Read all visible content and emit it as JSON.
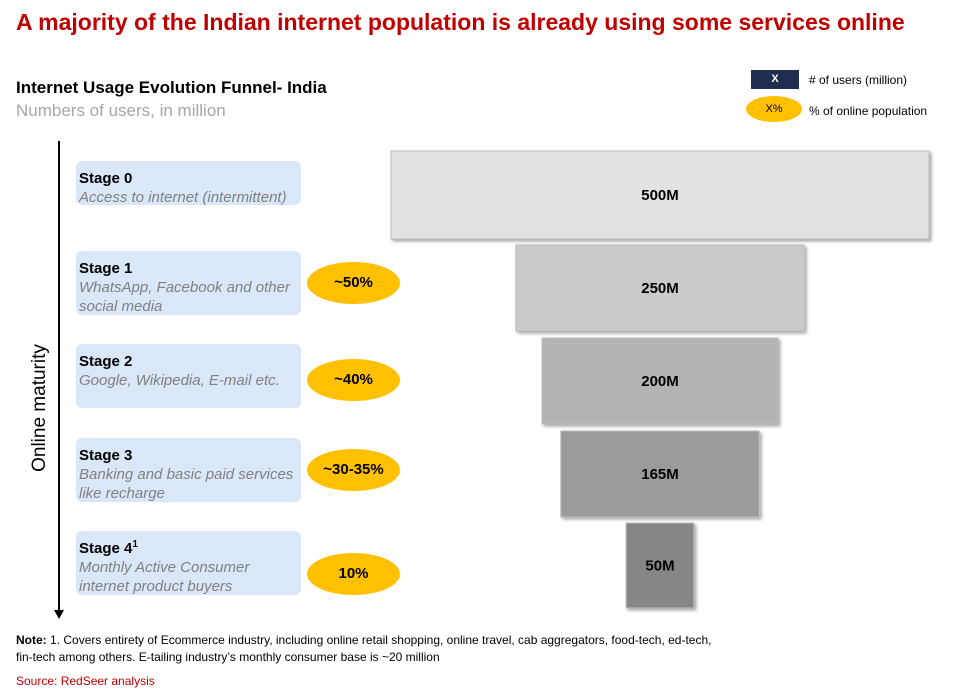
{
  "headline": "A majority of the Indian internet population is already using some services online",
  "legend": {
    "users_marker": "X",
    "users_label": "# of users (million)",
    "pct_marker": "X%",
    "pct_label": "% of online population"
  },
  "axis_label": "Online maturity",
  "stages": [
    {
      "name": "Stage 0",
      "sup": "",
      "desc": "Access to internet (intermittent)",
      "pct": ""
    },
    {
      "name": "Stage 1",
      "sup": "",
      "desc": "WhatsApp, Facebook and other social media",
      "pct": "~50%"
    },
    {
      "name": "Stage 2",
      "sup": "",
      "desc": "Google, Wikipedia, E-mail etc.",
      "pct": "~40%"
    },
    {
      "name": "Stage 3",
      "sup": "",
      "desc": "Banking and basic paid services like recharge",
      "pct": "~30-35%"
    },
    {
      "name": "Stage 4",
      "sup": "1",
      "desc": "Monthly Active Consumer internet product buyers",
      "pct": "10%"
    }
  ],
  "note": {
    "prefix": "Note:",
    "text": "1. Covers entirety of Ecommerce industry, including online retail shopping, online travel, cab aggregators, food-tech, ed-tech, fin-tech among others. E-tailing industry’s monthly consumer base is ~20 million"
  },
  "source": "Source: RedSeer analysis",
  "chart_data": {
    "type": "bar",
    "orientation": "horizontal-funnel",
    "title": "Internet Usage Evolution Funnel- India",
    "subtitle": "Numbers of users, in million",
    "categories": [
      "Stage 0",
      "Stage 1",
      "Stage 2",
      "Stage 3",
      "Stage 4"
    ],
    "values": [
      500,
      250,
      200,
      165,
      50
    ],
    "data_labels": [
      "500M",
      "250M",
      "200M",
      "165M",
      "50M"
    ],
    "colors": [
      "#e2e2e2",
      "#cacaca",
      "#b3b3b3",
      "#9b9b9b",
      "#868686"
    ],
    "ylabel": "Online maturity"
  }
}
